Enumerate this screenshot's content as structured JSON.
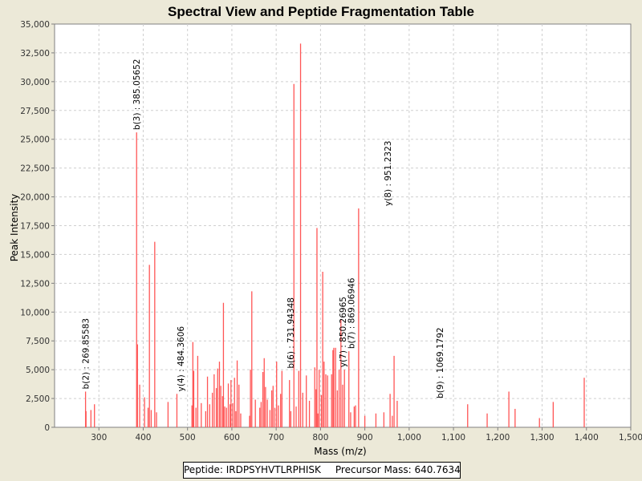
{
  "chart_data": {
    "type": "bar",
    "title": "Spectral View and Peptide Fragmentation Table",
    "xlabel": "Mass (m/z)",
    "ylabel": "Peak Intensity",
    "xlim": [
      200,
      1500
    ],
    "ylim": [
      0,
      35000
    ],
    "xticks": [
      {
        "v": 300,
        "label": "300"
      },
      {
        "v": 400,
        "label": "400"
      },
      {
        "v": 500,
        "label": "500"
      },
      {
        "v": 600,
        "label": "600"
      },
      {
        "v": 700,
        "label": "700"
      },
      {
        "v": 800,
        "label": "800"
      },
      {
        "v": 900,
        "label": "900"
      },
      {
        "v": 1000,
        "label": "1,000"
      },
      {
        "v": 1100,
        "label": "1,100"
      },
      {
        "v": 1200,
        "label": "1,200"
      },
      {
        "v": 1300,
        "label": "1,300"
      },
      {
        "v": 1400,
        "label": "1,400"
      },
      {
        "v": 1500,
        "label": "1,500"
      }
    ],
    "yticks": [
      {
        "v": 0,
        "label": "0"
      },
      {
        "v": 2500,
        "label": "2,500"
      },
      {
        "v": 5000,
        "label": "5,000"
      },
      {
        "v": 7500,
        "label": "7,500"
      },
      {
        "v": 10000,
        "label": "10,000"
      },
      {
        "v": 12500,
        "label": "12,500"
      },
      {
        "v": 15000,
        "label": "15,000"
      },
      {
        "v": 17500,
        "label": "17,500"
      },
      {
        "v": 20000,
        "label": "20,000"
      },
      {
        "v": 22500,
        "label": "22,500"
      },
      {
        "v": 25000,
        "label": "25,000"
      },
      {
        "v": 27500,
        "label": "27,500"
      },
      {
        "v": 30000,
        "label": "30,000"
      },
      {
        "v": 32500,
        "label": "32,500"
      },
      {
        "v": 35000,
        "label": "35,000"
      }
    ],
    "grid": true,
    "peaks": [
      [
        269.9,
        3100
      ],
      [
        271,
        1400
      ],
      [
        282,
        1500
      ],
      [
        290,
        2000
      ],
      [
        385.1,
        25600
      ],
      [
        387,
        7200
      ],
      [
        392,
        3700
      ],
      [
        403,
        2600
      ],
      [
        411,
        1700
      ],
      [
        414,
        14100
      ],
      [
        418,
        1500
      ],
      [
        426,
        16100
      ],
      [
        430,
        1300
      ],
      [
        456,
        2200
      ],
      [
        476,
        2900
      ],
      [
        510,
        1900
      ],
      [
        512,
        7400
      ],
      [
        514,
        4900
      ],
      [
        519,
        1700
      ],
      [
        523,
        6200
      ],
      [
        531,
        2100
      ],
      [
        541,
        1400
      ],
      [
        545,
        4400
      ],
      [
        550,
        2000
      ],
      [
        556,
        3000
      ],
      [
        560,
        4600
      ],
      [
        565,
        3400
      ],
      [
        568,
        5100
      ],
      [
        572,
        5700
      ],
      [
        575,
        3600
      ],
      [
        579,
        2700
      ],
      [
        581,
        10800
      ],
      [
        584,
        1800
      ],
      [
        588,
        1700
      ],
      [
        592,
        3800
      ],
      [
        596,
        2000
      ],
      [
        598,
        4100
      ],
      [
        602,
        2100
      ],
      [
        606,
        4300
      ],
      [
        609,
        1400
      ],
      [
        612,
        5800
      ],
      [
        616,
        3700
      ],
      [
        620,
        1200
      ],
      [
        640,
        1000
      ],
      [
        642,
        5000
      ],
      [
        645,
        11800
      ],
      [
        653,
        2400
      ],
      [
        663,
        1700
      ],
      [
        666,
        2200
      ],
      [
        670,
        4800
      ],
      [
        673,
        6000
      ],
      [
        676,
        3500
      ],
      [
        680,
        2400
      ],
      [
        686,
        1500
      ],
      [
        690,
        3200
      ],
      [
        693,
        3600
      ],
      [
        697,
        1700
      ],
      [
        701,
        5700
      ],
      [
        705,
        1900
      ],
      [
        710,
        2900
      ],
      [
        713,
        4900
      ],
      [
        730,
        4100
      ],
      [
        733,
        1400
      ],
      [
        740,
        29800
      ],
      [
        745,
        1800
      ],
      [
        751,
        4900
      ],
      [
        755,
        33300
      ],
      [
        760,
        3000
      ],
      [
        768,
        4500
      ],
      [
        775,
        2300
      ],
      [
        787,
        5200
      ],
      [
        790,
        3300
      ],
      [
        792,
        17300
      ],
      [
        794,
        1200
      ],
      [
        797,
        5000
      ],
      [
        802,
        2800
      ],
      [
        805,
        13500
      ],
      [
        808,
        5700
      ],
      [
        812,
        4600
      ],
      [
        816,
        4500
      ],
      [
        825,
        4600
      ],
      [
        828,
        6700
      ],
      [
        830,
        6900
      ],
      [
        834,
        6900
      ],
      [
        838,
        3200
      ],
      [
        842,
        5000
      ],
      [
        846,
        9400
      ],
      [
        850,
        3700
      ],
      [
        854,
        5000
      ],
      [
        864,
        6600
      ],
      [
        868,
        1300
      ],
      [
        876,
        1800
      ],
      [
        879,
        1900
      ],
      [
        886,
        19000
      ],
      [
        900,
        1000
      ],
      [
        925,
        1200
      ],
      [
        943,
        1300
      ],
      [
        957,
        2900
      ],
      [
        962,
        1000
      ],
      [
        966,
        6200
      ],
      [
        973,
        2300
      ],
      [
        1132,
        2000
      ],
      [
        1176,
        1200
      ],
      [
        1225,
        3100
      ],
      [
        1239,
        1600
      ],
      [
        1294,
        800
      ],
      [
        1325,
        2200
      ],
      [
        1395,
        4300
      ]
    ],
    "annotations": [
      {
        "label": "b(2) : 269.85583",
        "mass": 269.9,
        "intensity": 3100
      },
      {
        "label": "b(3) : 385.05652",
        "mass": 385.1,
        "intensity": 25600
      },
      {
        "label": "y(4) : 484.3606",
        "mass": 484.4,
        "intensity": 2900
      },
      {
        "label": "b(6) : 731.94348",
        "mass": 731.9,
        "intensity": 4900
      },
      {
        "label": "y(7) : 850.26965",
        "mass": 850.3,
        "intensity": 5000
      },
      {
        "label": "b(7) : 869.06946",
        "mass": 869.1,
        "intensity": 6600
      },
      {
        "label": "y(8) : 951.2323",
        "mass": 951.2,
        "intensity": 19000
      },
      {
        "label": "b(9) : 1069.1792",
        "mass": 1069.2,
        "intensity": 2300
      }
    ],
    "colors": {
      "peak": "#ff5555",
      "grid": "#cfcfcf",
      "annotation": "#000000"
    }
  },
  "info": {
    "peptide_label": "Peptide: IRDPSYHVTLRPHISK",
    "precursor_label": "Precursor Mass: 640.7634"
  }
}
